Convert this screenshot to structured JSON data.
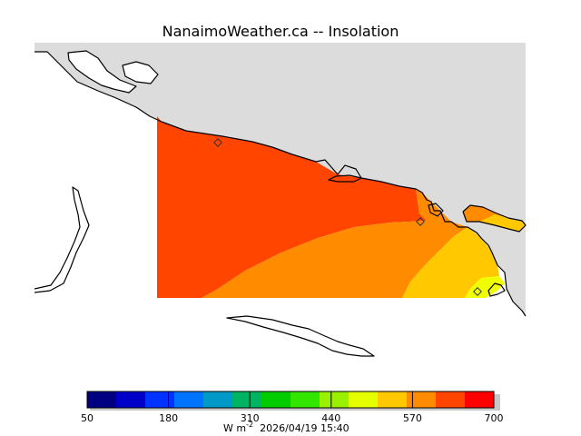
{
  "header": {
    "title": "NanaimoWeather.ca -- Insolation"
  },
  "map": {
    "background_color": "#ffffff",
    "land_color": "#dcdcdc",
    "coastline_color": "#000000",
    "field_colors": [
      "#ff4500",
      "#ff8c00",
      "#ffc800",
      "#f0ff00"
    ],
    "station_marker_count": 3
  },
  "colorbar": {
    "colors": [
      "#000080",
      "#0000c8",
      "#0033ff",
      "#0073ff",
      "#0099c8",
      "#00b464",
      "#00cc00",
      "#33e600",
      "#99f000",
      "#e6ff00",
      "#ffc800",
      "#ff8c00",
      "#ff4500",
      "#ff0000"
    ],
    "tick_labels": [
      "50",
      "180",
      "310",
      "440",
      "570",
      "700"
    ],
    "range": [
      50,
      700
    ]
  },
  "footer": {
    "unit_prefix": "W m",
    "unit_exponent": "-2",
    "timestamp": "2026/04/19 15:40"
  }
}
